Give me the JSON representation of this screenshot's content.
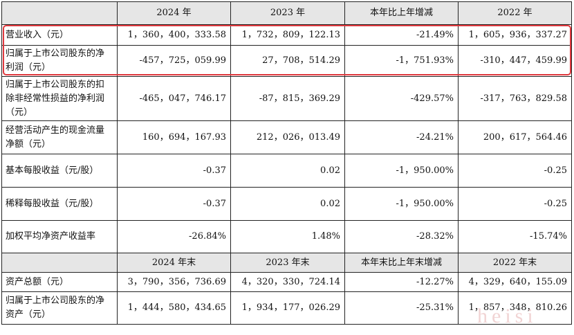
{
  "header1": {
    "c1": "2024 年",
    "c2": "2023 年",
    "c3": "本年比上年增减",
    "c4": "2022 年"
  },
  "rows1": [
    {
      "label": "营业收入（元）",
      "v": [
        "1，360，400，333.58",
        "1，732，809，122.13",
        "-21.49%",
        "1，605，936，337.27"
      ]
    },
    {
      "label": "归属于上市公司股东的净利润（元）",
      "v": [
        "-457，725，059.99",
        "27，708，514.29",
        "-1，751.93%",
        "-310，447，459.99"
      ]
    },
    {
      "label": "归属于上市公司股东的扣除非经常性损益的净利润（元）",
      "v": [
        "-465，047，746.17",
        "-87，815，369.29",
        "-429.57%",
        "-317，763，829.58"
      ]
    },
    {
      "label": "经营活动产生的现金流量净额（元）",
      "v": [
        "160，694，167.93",
        "212，026，013.49",
        "-24.21%",
        "200，617，564.46"
      ]
    },
    {
      "label": "基本每股收益（元/股）",
      "v": [
        "-0.37",
        "0.02",
        "-1，950.00%",
        "-0.25"
      ]
    },
    {
      "label": "稀释每股收益（元/股）",
      "v": [
        "-0.37",
        "0.02",
        "-1，950.00%",
        "-0.25"
      ]
    },
    {
      "label": "加权平均净资产收益率",
      "v": [
        "-26.84%",
        "1.48%",
        "-28.32%",
        "-15.74%"
      ]
    }
  ],
  "header2": {
    "c1": "2024 年末",
    "c2": "2023 年末",
    "c3": "本年末比上年末增减",
    "c4": "2022 年末"
  },
  "rows2": [
    {
      "label": "资产总额（元）",
      "v": [
        "3，790，356，736.69",
        "4，320，330，724.14",
        "-12.27%",
        "4，329，640，155.09"
      ]
    },
    {
      "label": "归属于上市公司股东的净资产（元）",
      "v": [
        "1，444，580，434.65",
        "1，934，177，026.29",
        "-25.31%",
        "1，857，348，810.26"
      ]
    }
  ],
  "watermark": "heisi",
  "colors": {
    "header_bg": "#e6e6e6",
    "highlight": "#e0393e",
    "border": "#222222"
  }
}
